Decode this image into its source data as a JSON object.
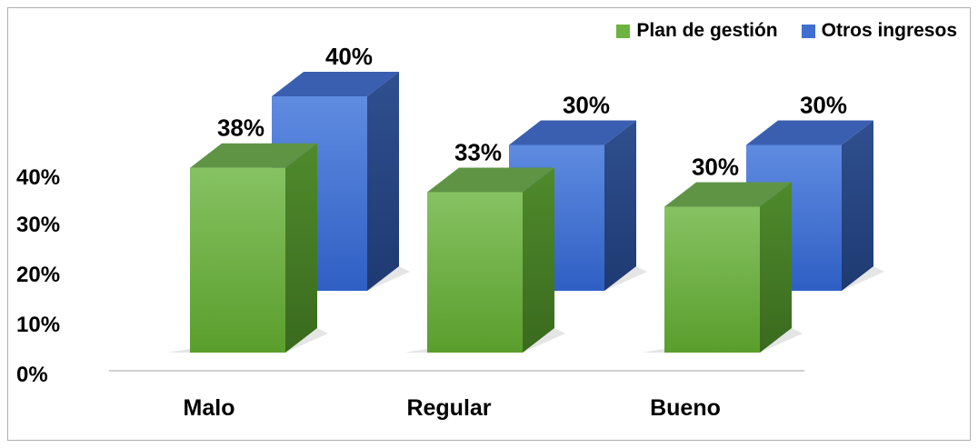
{
  "chart_data": {
    "type": "bar",
    "style": "3d-clustered",
    "categories": [
      "Malo",
      "Regular",
      "Bueno"
    ],
    "series": [
      {
        "name": "Plan de gestión",
        "values": [
          38,
          33,
          30
        ],
        "labels": [
          "38%",
          "33%",
          "30%"
        ],
        "color": "#6db33f"
      },
      {
        "name": "Otros ingresos",
        "values": [
          40,
          30,
          30
        ],
        "labels": [
          "40%",
          "30%",
          "30%"
        ],
        "color": "#3f6fd0"
      }
    ],
    "y_ticks": [
      "0%",
      "10%",
      "20%",
      "30%",
      "40%"
    ],
    "ylim": [
      0,
      40
    ],
    "legend_position": "top-right",
    "grid": false
  }
}
